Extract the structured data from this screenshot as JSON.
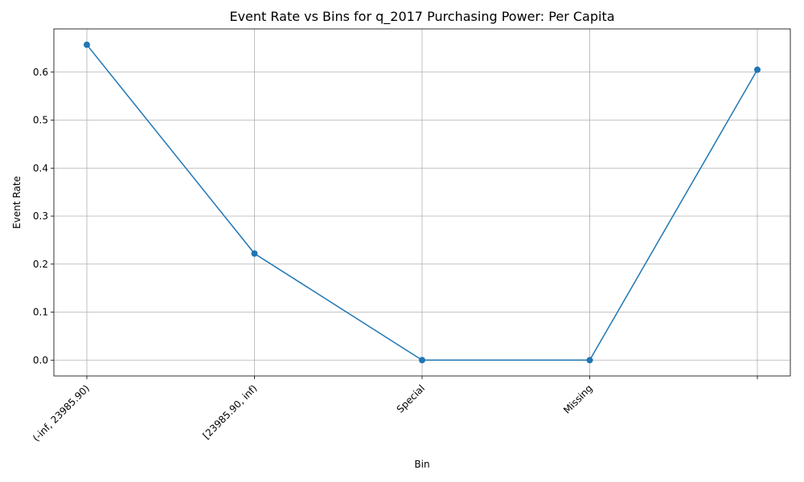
{
  "chart_data": {
    "type": "line",
    "title": "Event Rate vs Bins for q_2017 Purchasing Power: Per Capita",
    "xlabel": "Bin",
    "ylabel": "Event Rate",
    "categories": [
      "(-inf, 23985.90)",
      "[23985.90, inf)",
      "Special",
      "Missing",
      ""
    ],
    "series": [
      {
        "values": [
          0.657,
          0.222,
          0.0,
          0.0,
          0.605
        ]
      }
    ],
    "ylim": [
      -0.033,
      0.69
    ],
    "yticks": [
      0.0,
      0.1,
      0.2,
      0.3,
      0.4,
      0.5,
      0.6
    ],
    "ytick_labels": [
      "0.0",
      "0.1",
      "0.2",
      "0.3",
      "0.4",
      "0.5",
      "0.6"
    ],
    "grid": true,
    "marker": "circle",
    "line_color": "#1f77b4"
  }
}
